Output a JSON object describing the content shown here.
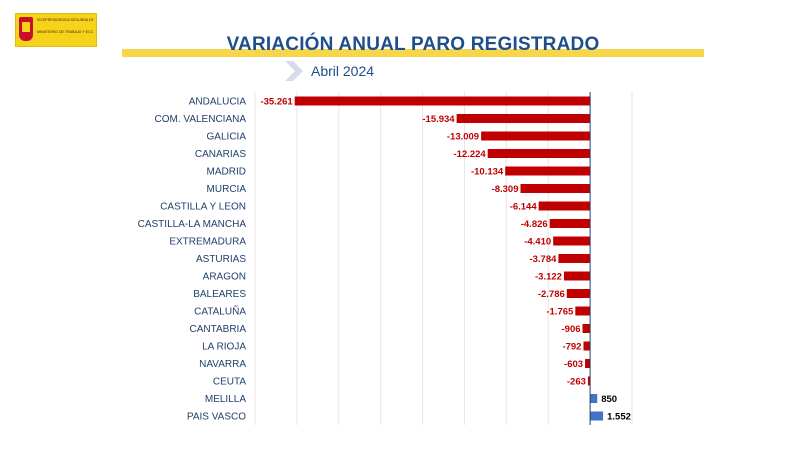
{
  "header": {
    "logo_line1": "Vicepresidencia Segunda del Gobierno",
    "logo_line2": "Ministerio de Trabajo y Economía Social",
    "title": "VARIACIÓN ANUAL PARO REGISTRADO",
    "subtitle": "Abril 2024"
  },
  "colors": {
    "negative": "#c00000",
    "positive": "#4472c4",
    "title": "#1f4e8c",
    "accent": "#f7d64a"
  },
  "chart_data": {
    "type": "bar",
    "orientation": "horizontal",
    "categories": [
      "ANDALUCIA",
      "COM. VALENCIANA",
      "GALICIA",
      "CANARIAS",
      "MADRID",
      "MURCIA",
      "CASTILLA Y LEON",
      "CASTILLA-LA MANCHA",
      "EXTREMADURA",
      "ASTURIAS",
      "ARAGON",
      "BALEARES",
      "CATALUÑA",
      "CANTABRIA",
      "LA RIOJA",
      "NAVARRA",
      "CEUTA",
      "MELILLA",
      "PAIS VASCO"
    ],
    "values": [
      -35261,
      -15934,
      -13009,
      -12224,
      -10134,
      -8309,
      -6144,
      -4826,
      -4410,
      -3784,
      -3122,
      -2786,
      -1765,
      -906,
      -792,
      -603,
      -263,
      850,
      1552
    ],
    "labels": [
      "-35.261",
      "-15.934",
      "-13.009",
      "-12.224",
      "-10.134",
      "-8.309",
      "-6.144",
      "-4.826",
      "-4.410",
      "-3.784",
      "-3.122",
      "-2.786",
      "-1.765",
      "-906",
      "-792",
      "-603",
      "-263",
      "850",
      "1.552"
    ],
    "xlim": [
      -40000,
      5000
    ],
    "grid": true
  }
}
